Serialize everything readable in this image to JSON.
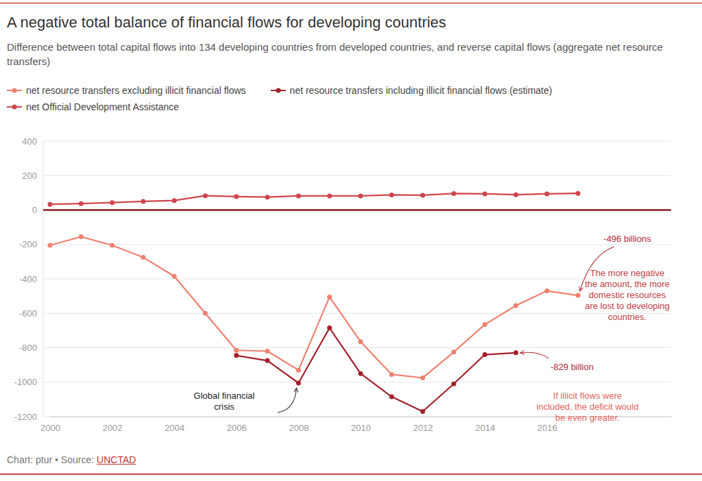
{
  "chart_data": {
    "type": "line",
    "title": "A negative total balance of financial flows for developing countries",
    "subtitle": "Difference between total capital flows into 134 developing countries from developed countries, and reverse capital flows (aggregate net resource transfers)",
    "x": [
      2000,
      2001,
      2002,
      2003,
      2004,
      2005,
      2006,
      2007,
      2008,
      2009,
      2010,
      2011,
      2012,
      2013,
      2014,
      2015,
      2016,
      2017
    ],
    "xlim": [
      2000,
      2020
    ],
    "xticks": [
      2000,
      2002,
      2004,
      2006,
      2008,
      2010,
      2012,
      2014,
      2016
    ],
    "ylim": [
      -1200,
      400
    ],
    "yticks": [
      -1200,
      -1000,
      -800,
      -600,
      -400,
      -200,
      0,
      200,
      400
    ],
    "grid": true,
    "marker": "circle",
    "series": [
      {
        "name": "net resource transfers excluding illicit financial flows",
        "color": "#ef8070",
        "values": [
          -205,
          -155,
          -205,
          -275,
          -385,
          -600,
          -815,
          -820,
          -930,
          -505,
          -765,
          -955,
          -975,
          -825,
          -665,
          -555,
          -470,
          -496
        ]
      },
      {
        "name": "net resource transfers including illicit financial flows (estimate)",
        "color": "#a3202b",
        "values": [
          null,
          null,
          null,
          null,
          null,
          null,
          -845,
          -875,
          -1005,
          -685,
          -950,
          -1085,
          -1170,
          -1010,
          -840,
          -829,
          null,
          null
        ]
      },
      {
        "name": "net Official Development Assistance",
        "color": "#d0454c",
        "values": [
          33,
          37,
          43,
          50,
          55,
          83,
          78,
          75,
          82,
          82,
          82,
          88,
          86,
          96,
          94,
          89,
          94,
          97
        ]
      }
    ],
    "annotations": [
      {
        "text": "-496 billions"
      },
      {
        "text": "The more negative\nthe amount, the more\ndomestic resources\nare lost to developing\ncountries."
      },
      {
        "text": "-829 billion"
      },
      {
        "text": "If illicit flows were\nincluded, the deficit would\nbe even greater."
      },
      {
        "text": "Global financial\ncrisis"
      }
    ],
    "footer": {
      "credit": "Chart: ptur • Source:",
      "link": "UNCTAD"
    }
  }
}
